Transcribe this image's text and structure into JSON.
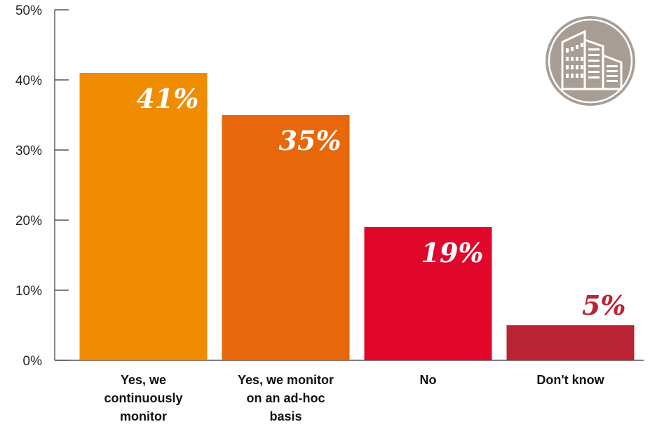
{
  "chart_data": {
    "type": "bar",
    "categories": [
      [
        "Yes, we",
        "continuously",
        "monitor"
      ],
      [
        "Yes, we monitor",
        "on an ad-hoc",
        "basis"
      ],
      [
        "No"
      ],
      [
        "Don't know"
      ]
    ],
    "values": [
      41,
      35,
      19,
      5
    ],
    "data_labels": [
      "41%",
      "35%",
      "19%",
      "5%"
    ],
    "label_placement": [
      "inside",
      "inside",
      "inside",
      "above"
    ],
    "ylim": [
      0,
      50
    ],
    "yticks": [
      0,
      10,
      20,
      30,
      40,
      50
    ],
    "ytick_labels": [
      "0%",
      "10%",
      "20%",
      "30%",
      "40%",
      "50%"
    ],
    "grid": false,
    "colors": [
      "#EF8C00",
      "#E8670A",
      "#E0072A",
      "#B92333"
    ],
    "data_label_colors": [
      "#ffffff",
      "#ffffff",
      "#ffffff",
      "#B92333"
    ],
    "icon": {
      "name": "office-buildings-icon",
      "color": "#A79D95"
    }
  }
}
